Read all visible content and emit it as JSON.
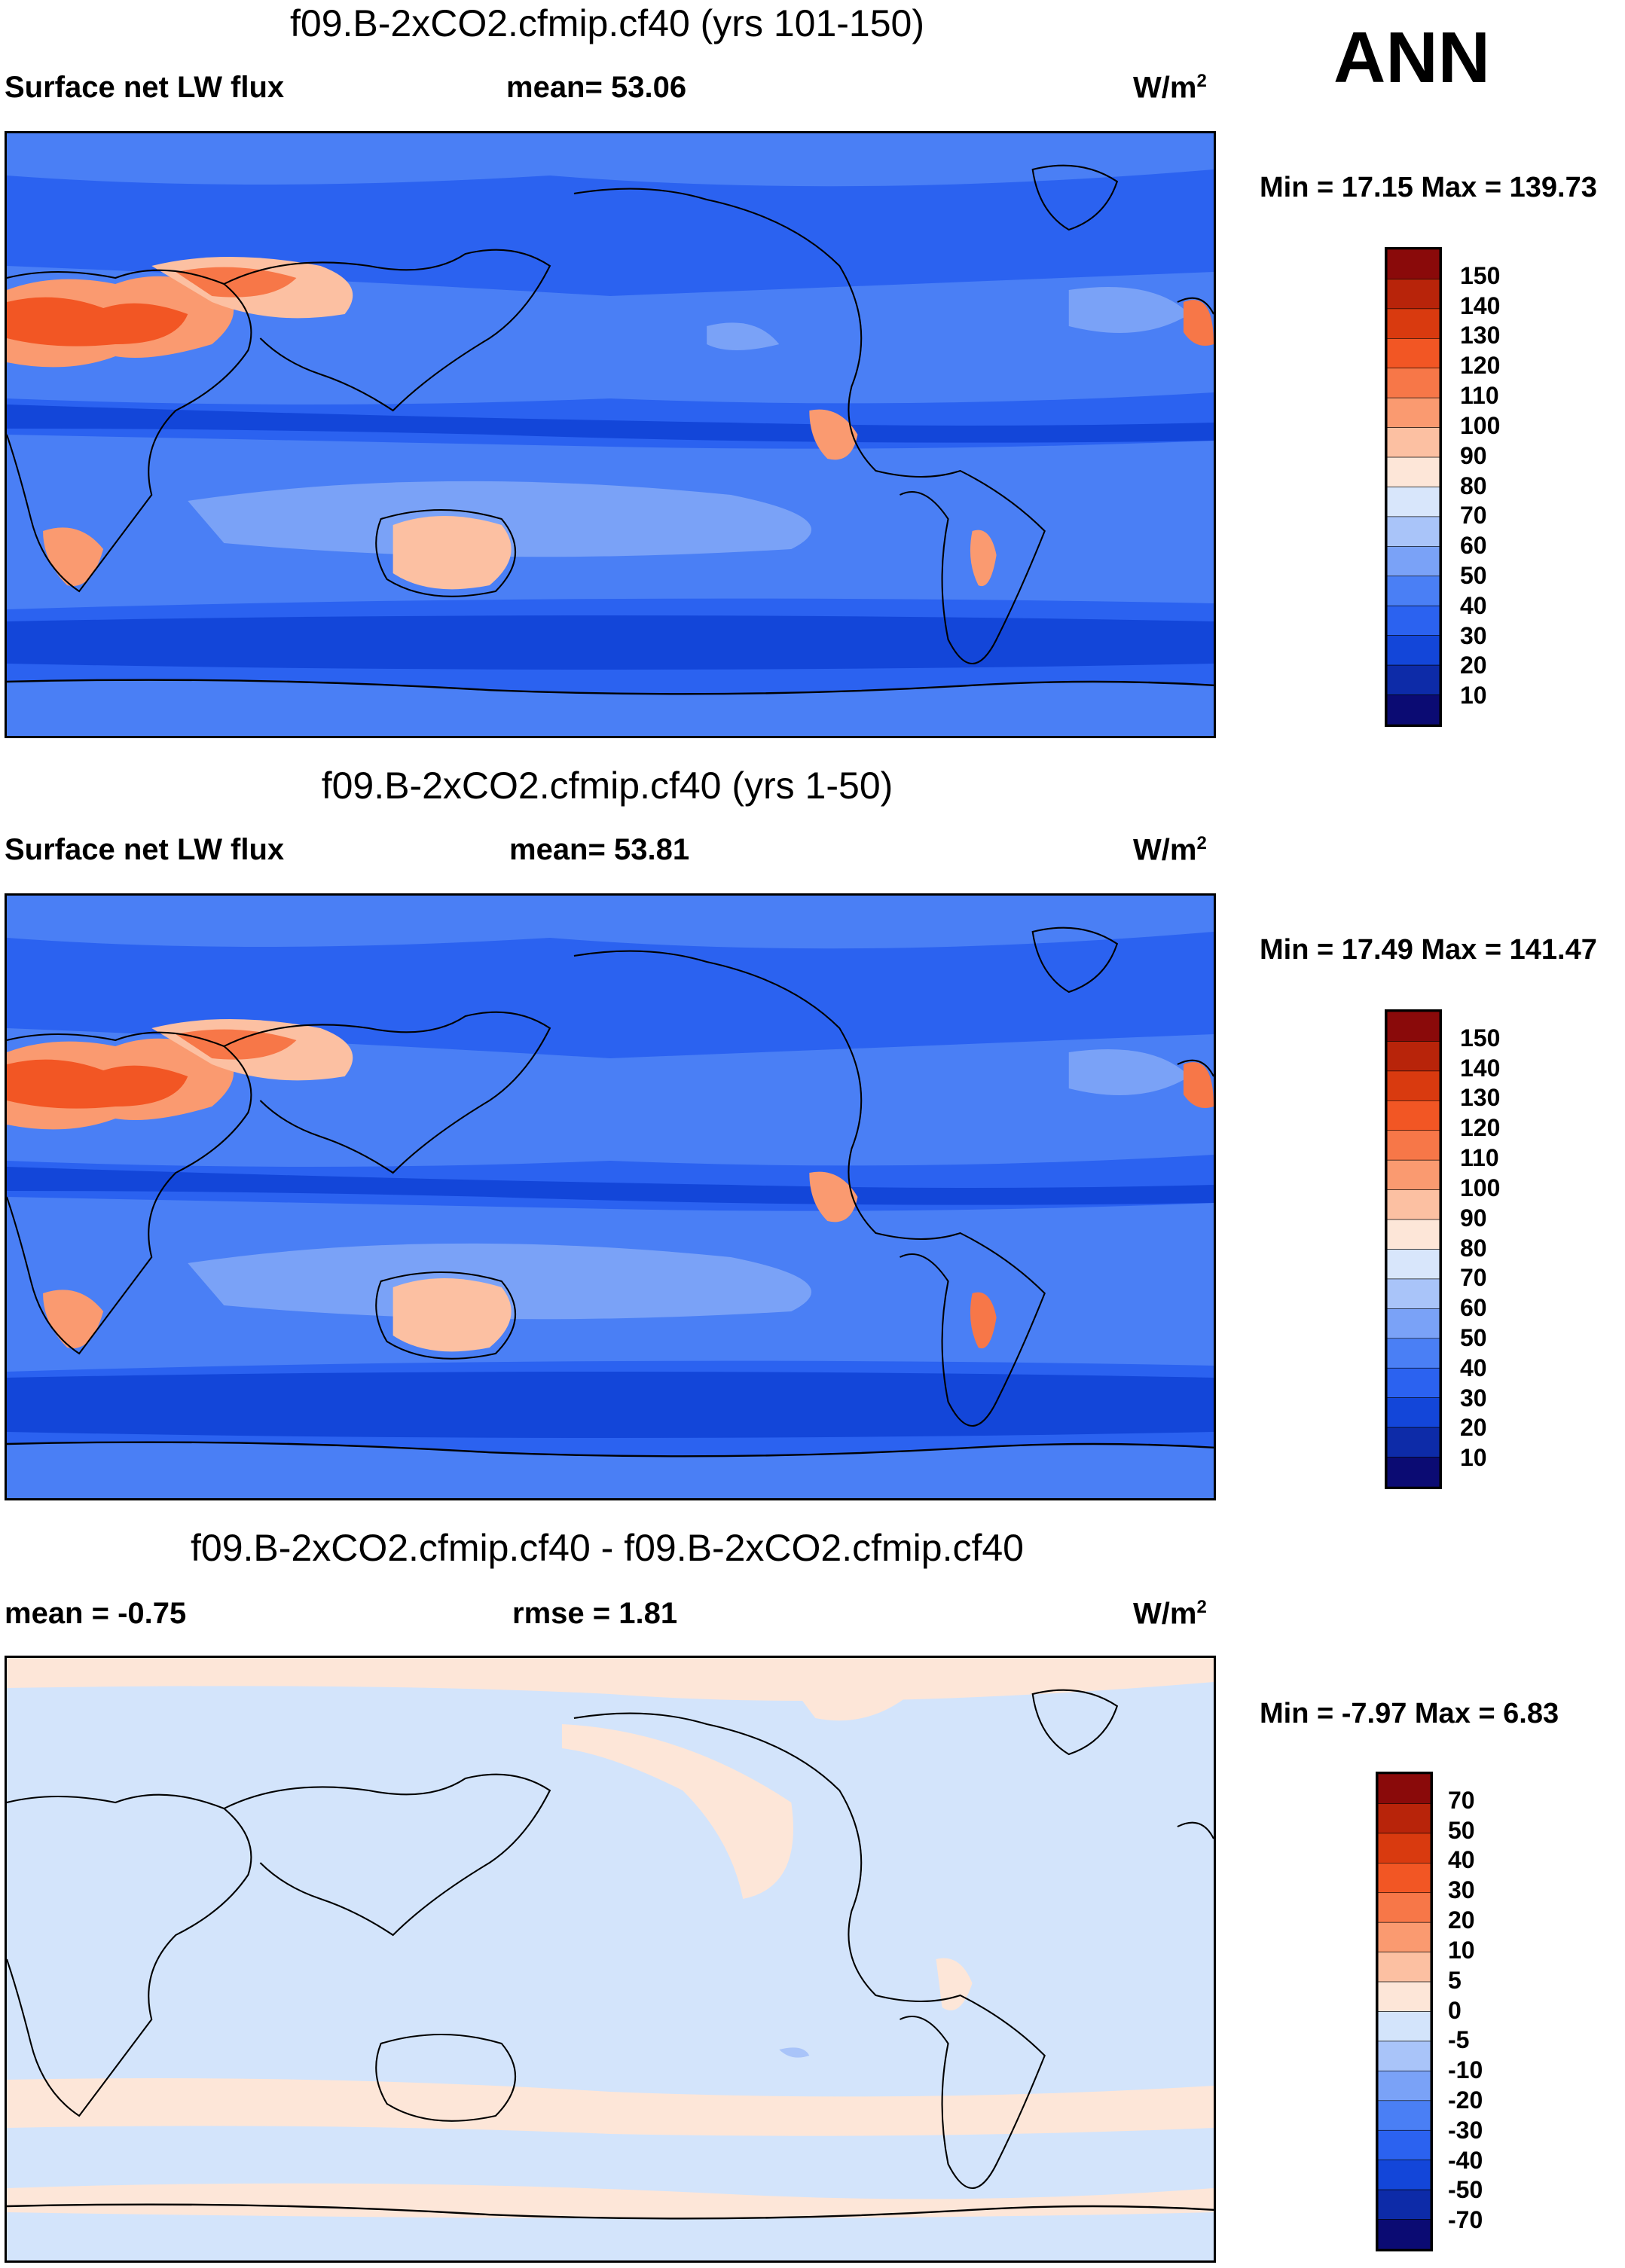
{
  "season": "ANN",
  "panels": [
    {
      "title": "f09.B-2xCO2.cfmip.cf40 (yrs 101-150)",
      "left_label": "Surface net LW flux",
      "mid_label": "mean=  53.06",
      "units": "W/m",
      "units_sup": "2",
      "minmax": "Min =  17.15 Max = 139.73",
      "colorbar": {
        "colors": [
          "#0b0b73",
          "#0d2ba8",
          "#1346d9",
          "#2b62f0",
          "#4a7ff5",
          "#7aa2f7",
          "#a9c4f9",
          "#d8e6fb",
          "#fde6d8",
          "#fcc0a2",
          "#fa9a70",
          "#f77748",
          "#f25624",
          "#d93a0f",
          "#b8240a",
          "#8a0a0a"
        ],
        "labels": [
          "150",
          "140",
          "130",
          "120",
          "110",
          "100",
          "90",
          "80",
          "70",
          "60",
          "50",
          "40",
          "30",
          "20",
          "10"
        ]
      }
    },
    {
      "title": "f09.B-2xCO2.cfmip.cf40 (yrs 1-50)",
      "left_label": "Surface net LW flux",
      "mid_label": "mean=  53.81",
      "units": "W/m",
      "units_sup": "2",
      "minmax": "Min =  17.49 Max = 141.47",
      "colorbar": {
        "colors": [
          "#0b0b73",
          "#0d2ba8",
          "#1346d9",
          "#2b62f0",
          "#4a7ff5",
          "#7aa2f7",
          "#a9c4f9",
          "#d8e6fb",
          "#fde6d8",
          "#fcc0a2",
          "#fa9a70",
          "#f77748",
          "#f25624",
          "#d93a0f",
          "#b8240a",
          "#8a0a0a"
        ],
        "labels": [
          "150",
          "140",
          "130",
          "120",
          "110",
          "100",
          "90",
          "80",
          "70",
          "60",
          "50",
          "40",
          "30",
          "20",
          "10"
        ]
      }
    },
    {
      "title": "f09.B-2xCO2.cfmip.cf40 - f09.B-2xCO2.cfmip.cf40",
      "left_label": "mean =  -0.75",
      "mid_label": "rmse =   1.81",
      "units": "W/m",
      "units_sup": "2",
      "minmax": "Min =  -7.97 Max =   6.83",
      "colorbar": {
        "colors": [
          "#0b0b73",
          "#0d2ba8",
          "#1346d9",
          "#2b62f0",
          "#4a7ff5",
          "#7aa2f7",
          "#a9c4f9",
          "#d3e4fb",
          "#fde6d8",
          "#fcc0a2",
          "#fa9a70",
          "#f77748",
          "#f25624",
          "#d93a0f",
          "#b8240a",
          "#8a0a0a"
        ],
        "labels": [
          "70",
          "50",
          "40",
          "30",
          "20",
          "10",
          "5",
          "0",
          "-5",
          "-10",
          "-20",
          "-30",
          "-40",
          "-50",
          "-70"
        ]
      }
    }
  ],
  "colors": {
    "ocean_deep": "#2b62f0",
    "ocean_mid": "#4a7ff5",
    "ocean_light": "#7aa2f7",
    "band_dark": "#1346d9",
    "desert_hot": "#f25624",
    "desert_warm": "#fa9a70",
    "desert_light": "#fcc0a2",
    "diff_blue": "#d3e4fb",
    "diff_orange": "#fde6d8"
  }
}
